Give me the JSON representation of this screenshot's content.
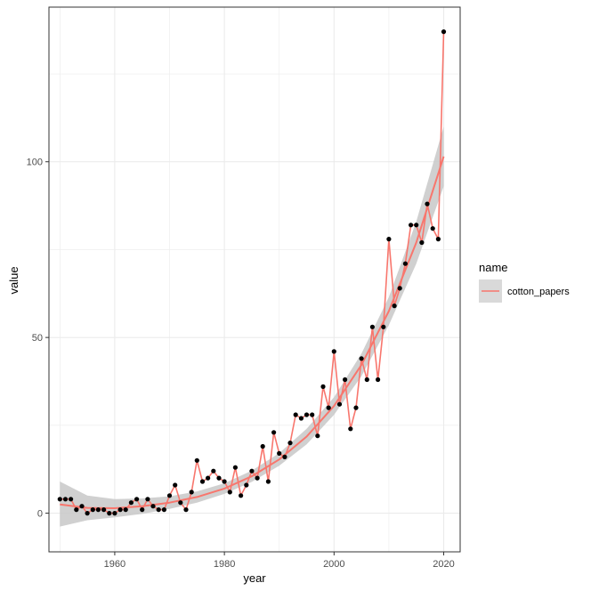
{
  "chart_data": {
    "type": "line",
    "title": "",
    "xlabel": "year",
    "ylabel": "value",
    "xlim": [
      1948,
      2023
    ],
    "ylim": [
      -11,
      144
    ],
    "x_ticks": [
      1960,
      1980,
      2000,
      2020
    ],
    "y_ticks": [
      0,
      50,
      100
    ],
    "x_minor_ticks": [
      1950,
      1970,
      1990,
      2010
    ],
    "y_minor_ticks": [
      25,
      75,
      125
    ],
    "grid": true,
    "legend": {
      "title": "name",
      "position": "right",
      "entries": [
        "cotton_papers"
      ]
    },
    "colors": {
      "series": "#F8766D",
      "points": "#000000",
      "smooth_line": "#F8766D",
      "ribbon": "#C8C8C8",
      "grid": "#EBEBEB",
      "panel_border": "#333333"
    },
    "series": [
      {
        "name": "cotton_papers",
        "x": [
          1950,
          1951,
          1952,
          1953,
          1954,
          1955,
          1956,
          1957,
          1958,
          1959,
          1960,
          1961,
          1962,
          1963,
          1964,
          1965,
          1966,
          1967,
          1968,
          1969,
          1970,
          1971,
          1972,
          1973,
          1974,
          1975,
          1976,
          1977,
          1978,
          1979,
          1980,
          1981,
          1982,
          1983,
          1984,
          1985,
          1986,
          1987,
          1988,
          1989,
          1990,
          1991,
          1992,
          1993,
          1994,
          1995,
          1996,
          1997,
          1998,
          1999,
          2000,
          2001,
          2002,
          2003,
          2004,
          2005,
          2006,
          2007,
          2008,
          2009,
          2010,
          2011,
          2012,
          2013,
          2014,
          2015,
          2016,
          2017,
          2018,
          2019,
          2020
        ],
        "values": [
          4,
          4,
          4,
          1,
          2,
          0,
          1,
          1,
          1,
          0,
          0,
          1,
          1,
          3,
          4,
          1,
          4,
          2,
          1,
          1,
          5,
          8,
          3,
          1,
          6,
          15,
          9,
          10,
          12,
          10,
          9,
          6,
          13,
          5,
          8,
          12,
          10,
          19,
          9,
          23,
          17,
          16,
          20,
          28,
          27,
          28,
          28,
          22,
          36,
          30,
          46,
          31,
          38,
          24,
          30,
          44,
          38,
          53,
          38,
          53,
          78,
          59,
          64,
          71,
          82,
          82,
          77,
          88,
          81,
          78,
          137
        ]
      }
    ],
    "smooth": {
      "x": [
        1950,
        1955,
        1960,
        1965,
        1970,
        1975,
        1980,
        1985,
        1990,
        1995,
        2000,
        2005,
        2010,
        2015,
        2020
      ],
      "y": [
        2.5,
        1.5,
        1.4,
        2.0,
        3.0,
        4.6,
        7.0,
        10.5,
        15.3,
        21.8,
        30.5,
        42.2,
        57.5,
        77.0,
        101.5
      ],
      "ymin": [
        -3.8,
        -2.0,
        -1.2,
        -0.2,
        1.2,
        3.0,
        5.5,
        8.9,
        13.5,
        19.6,
        28.0,
        39.0,
        53.5,
        71.0,
        93.0
      ],
      "ymax": [
        9.0,
        5.0,
        4.0,
        4.2,
        4.8,
        6.2,
        8.5,
        12.1,
        17.1,
        24.0,
        33.0,
        45.4,
        61.5,
        83.0,
        110.0
      ]
    }
  }
}
